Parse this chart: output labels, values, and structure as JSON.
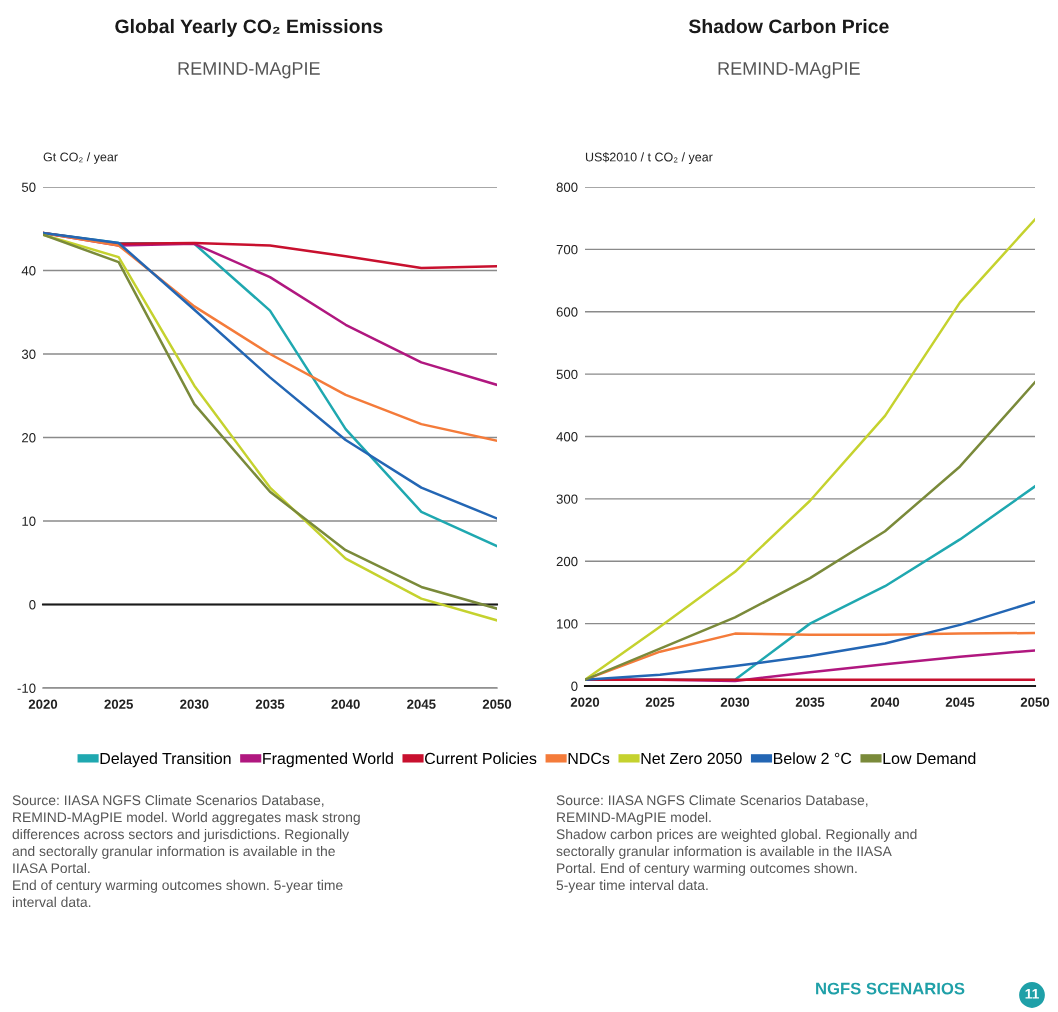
{
  "chart_data": [
    {
      "type": "line",
      "title": "Global Yearly CO₂ Emissions",
      "subtitle": "REMIND-MAgPIE",
      "ylabel": "Gt CO₂ / year",
      "x": [
        2020,
        2025,
        2030,
        2035,
        2040,
        2045,
        2050
      ],
      "xlim": [
        2020,
        2050
      ],
      "xticks": [
        2020,
        2025,
        2030,
        2035,
        2040,
        2045,
        2050
      ],
      "ylim": [
        -10,
        50
      ],
      "yticks": [
        -10,
        0,
        10,
        20,
        30,
        40,
        50
      ],
      "grid": "y",
      "legend": "bottom",
      "ref_lines": [
        {
          "axis": "y",
          "value": 0,
          "color": "#1a1a1a"
        }
      ],
      "series": [
        {
          "name": "Delayed Transition",
          "color": "#1fa8b0",
          "values": [
            44.5,
            43.3,
            43.2,
            35.2,
            21,
            11.1,
            7
          ]
        },
        {
          "name": "Fragmented World",
          "color": "#b0177f",
          "values": [
            44.5,
            43,
            43.2,
            39.2,
            33.5,
            29,
            26.3
          ]
        },
        {
          "name": "Current Policies",
          "color": "#c8102e",
          "values": [
            44.5,
            43.2,
            43.3,
            43,
            41.7,
            40.3,
            40.5
          ]
        },
        {
          "name": "NDCs",
          "color": "#f47b3a",
          "values": [
            44.5,
            43,
            35.7,
            30,
            25.1,
            21.6,
            19.6
          ]
        },
        {
          "name": "Net Zero 2050",
          "color": "#c5d22e",
          "values": [
            44.3,
            41.6,
            26.2,
            14,
            5.5,
            0.7,
            -1.9
          ]
        },
        {
          "name": "Below 2 °C",
          "color": "#2366b4",
          "values": [
            44.5,
            43.3,
            35.3,
            27.2,
            19.7,
            14,
            10.3
          ]
        },
        {
          "name": "Low Demand",
          "color": "#7a8a3a",
          "values": [
            44.3,
            41,
            24,
            13.5,
            6.5,
            2.1,
            -0.5
          ]
        }
      ],
      "annotations": [
        "Source: IIASA NGFS Climate Scenarios Database,\nREMIND-MAgPIE model. World aggregates mask strong\ndifferences across sectors and jurisdictions. Regionally\nand sectorally granular information is available in the\nIIASA Portal.\nEnd of century warming outcomes shown. 5-year time\ninterval data."
      ]
    },
    {
      "type": "line",
      "title": "Shadow Carbon Price",
      "subtitle": "REMIND-MAgPIE",
      "ylabel": "US$2010 / t CO₂ / year",
      "x": [
        2020,
        2025,
        2030,
        2035,
        2040,
        2045,
        2050
      ],
      "xlim": [
        2020,
        2050
      ],
      "xticks": [
        2020,
        2025,
        2030,
        2035,
        2040,
        2045,
        2050
      ],
      "ylim": [
        0,
        800
      ],
      "yticks": [
        0,
        100,
        200,
        300,
        400,
        500,
        600,
        700,
        800
      ],
      "grid": "y",
      "series": [
        {
          "color": "#1fa8b0",
          "values": [
            10,
            10,
            10,
            100,
            160,
            235,
            320
          ]
        },
        {
          "color": "#b0177f",
          "values": [
            10,
            10,
            8,
            22,
            35,
            47,
            57
          ]
        },
        {
          "color": "#c8102e",
          "values": [
            10,
            10,
            10,
            10,
            10,
            10,
            10
          ]
        },
        {
          "color": "#f47b3a",
          "values": [
            10,
            55,
            84,
            82,
            82,
            84,
            85
          ]
        },
        {
          "color": "#c5d22e",
          "values": [
            10,
            95,
            183,
            297,
            433,
            615,
            748
          ]
        },
        {
          "color": "#2366b4",
          "values": [
            10,
            18,
            32,
            48,
            68,
            98,
            135
          ]
        },
        {
          "color": "#7a8a3a",
          "values": [
            10,
            60,
            110,
            173,
            248,
            352,
            487
          ]
        }
      ],
      "annotations": [
        "Source: IIASA NGFS Climate Scenarios Database,\nREMIND-MAgPIE model.\nShadow carbon prices are weighted global. Regionally and\nsectorally granular information is available in the IIASA\nPortal. End of century warming outcomes shown.\n5-year time interval data.",
        "NGFS SCENARIOS",
        "11"
      ]
    }
  ]
}
